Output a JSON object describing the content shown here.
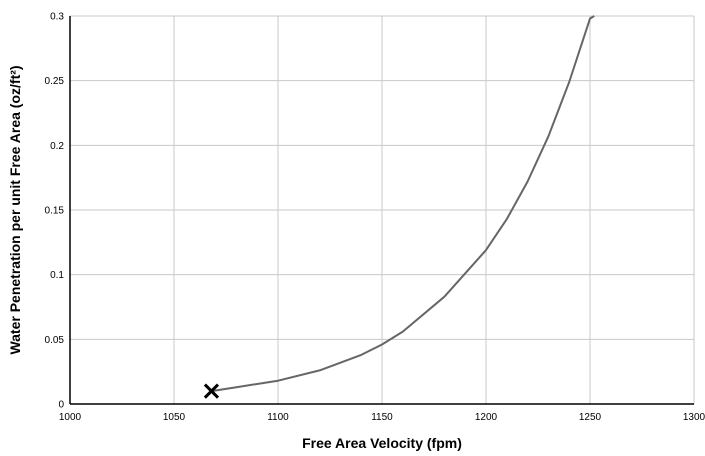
{
  "chart_data": {
    "type": "line",
    "title": "",
    "xlabel": "Free Area Velocity (fpm)",
    "ylabel": "Water Penetration per unit Free Area (oz/ft²)",
    "xlim": [
      1000,
      1300
    ],
    "ylim": [
      0,
      0.3
    ],
    "x_ticks": [
      1000,
      1050,
      1100,
      1150,
      1200,
      1250,
      1300
    ],
    "x_tick_labels": [
      "1000",
      "1050",
      "1100",
      "1150",
      "1200",
      "1250",
      "1300"
    ],
    "y_ticks": [
      0,
      0.05,
      0.1,
      0.15,
      0.2,
      0.25,
      0.3
    ],
    "y_tick_labels": [
      "0",
      "0.05",
      "0.1",
      "0.15",
      "0.2",
      "0.25",
      "0.3"
    ],
    "grid": true,
    "legend": "none",
    "series": [
      {
        "x": [
          1068,
          1080,
          1100,
          1120,
          1140,
          1150,
          1160,
          1180,
          1200,
          1210,
          1220,
          1230,
          1240,
          1250,
          1252
        ],
        "y": [
          0.01,
          0.013,
          0.018,
          0.026,
          0.038,
          0.046,
          0.056,
          0.083,
          0.119,
          0.143,
          0.172,
          0.207,
          0.249,
          0.298,
          0.3
        ],
        "color": "#666666"
      }
    ],
    "marker": {
      "x": 1068,
      "y": 0.01,
      "symbol": "x-icon",
      "color": "#000000"
    }
  }
}
